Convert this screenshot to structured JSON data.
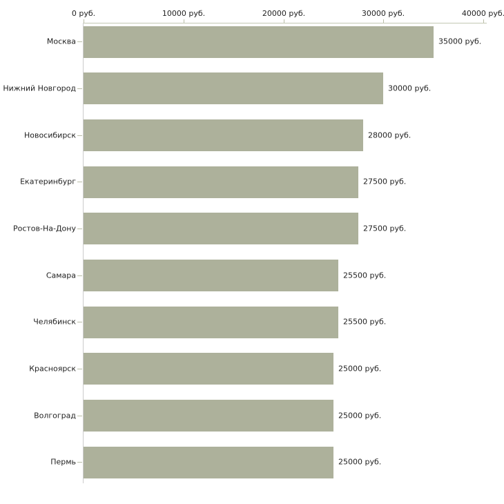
{
  "chart_data": {
    "type": "bar",
    "orientation": "horizontal",
    "title": "",
    "xlabel": "",
    "ylabel": "",
    "legend": "none",
    "grid": false,
    "categories": [
      "Москва",
      "Нижний Новгород",
      "Новосибирск",
      "Екатеринбург",
      "Ростов-На-Дону",
      "Самара",
      "Челябинск",
      "Красноярск",
      "Волгоград",
      "Пермь"
    ],
    "values": [
      35000,
      30000,
      28000,
      27500,
      27500,
      25500,
      25500,
      25000,
      25000,
      25000
    ],
    "value_labels": [
      "35000 руб.",
      "30000 руб.",
      "28000 руб.",
      "27500 руб.",
      "27500 руб.",
      "25500 руб.",
      "25500 руб.",
      "25000 руб.",
      "25000 руб.",
      "25000 руб."
    ],
    "x_axis": {
      "position": "top",
      "range": [
        0,
        40000
      ],
      "tick_values": [
        0,
        10000,
        20000,
        30000,
        40000
      ],
      "tick_labels": [
        "0 руб.",
        "10000 руб.",
        "20000 руб.",
        "30000 руб.",
        "40000 руб."
      ]
    },
    "colors": {
      "bar": "#adb19b",
      "axis_line": "#c3c7b3",
      "axis_tick": "#b9bda7",
      "category_axis_line": "#cbcbcb",
      "text": "#222222",
      "background": "#ffffff"
    }
  }
}
